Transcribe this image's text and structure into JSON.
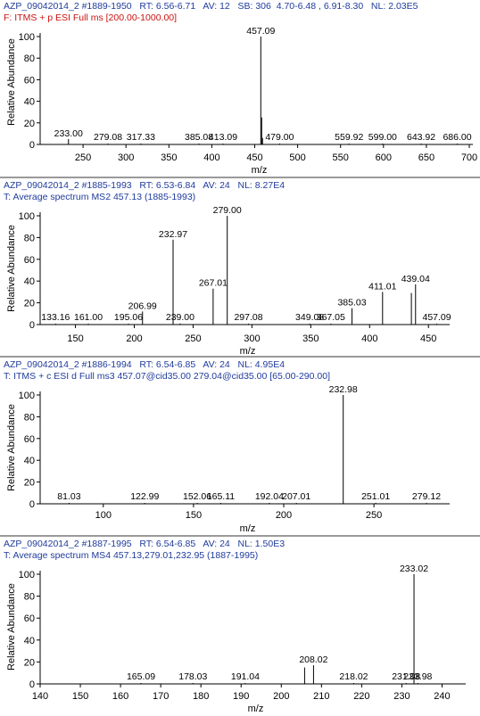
{
  "ui": {
    "ylabel": "Relative Abundance",
    "xlabel": "m/z",
    "colors": {
      "header_text": "#1f3b9c",
      "filter_red": "#cc1111",
      "axis": "#000000",
      "stick": "#000000"
    }
  },
  "panels": [
    {
      "line1": "AZP_09042014_2 #1889-1950   RT: 6.56-6.71   AV: 12   SB: 306  4.70-6.48 , 6.91-8.30   NL: 2.03E5",
      "line2": "F: ITMS + p ESI Full ms [200.00-1000.00]",
      "line2_red": true
    },
    {
      "line1": "AZP_09042014_2 #1885-1993   RT: 6.53-6.84   AV: 24   NL: 8.27E4",
      "line2": "T: Average spectrum MS2 457.13 (1885-1993)",
      "line2_red": false
    },
    {
      "line1": "AZP_09042014_2 #1886-1994   RT: 6.54-6.85   AV: 24   NL: 4.95E4",
      "line2": "T: ITMS + c ESI d Full ms3 457.07@cid35.00 279.04@cid35.00 [65.00-290.00]",
      "line2_red": false
    },
    {
      "line1": "AZP_09042014_2 #1887-1995   RT: 6.54-6.85   AV: 24   NL: 1.50E3",
      "line2": "T: Average spectrum MS4 457.13,279.01,232.95 (1887-1995)",
      "line2_red": false
    }
  ],
  "chart_data": [
    {
      "type": "bar",
      "xlabel": "m/z",
      "ylabel": "Relative Abundance",
      "xlim": [
        200,
        700
      ],
      "ylim": [
        0,
        100
      ],
      "xticks": [
        250,
        300,
        350,
        400,
        450,
        500,
        550,
        600,
        650,
        700
      ],
      "yticks": [
        0,
        20,
        40,
        60,
        80,
        100
      ],
      "peaks": [
        {
          "mz": 233.0,
          "intensity": 5,
          "label": "233.00"
        },
        {
          "mz": 279.08,
          "intensity": 0.5,
          "label": "279.08"
        },
        {
          "mz": 317.33,
          "intensity": 0.5,
          "label": "317.33"
        },
        {
          "mz": 385.08,
          "intensity": 0.5,
          "label": "385.08"
        },
        {
          "mz": 413.09,
          "intensity": 0.5,
          "label": "413.09"
        },
        {
          "mz": 457.09,
          "intensity": 100,
          "label": "457.09"
        },
        {
          "mz": 458.1,
          "intensity": 25,
          "label": ""
        },
        {
          "mz": 459.1,
          "intensity": 6,
          "label": ""
        },
        {
          "mz": 479.0,
          "intensity": 0.5,
          "label": "479.00"
        },
        {
          "mz": 559.92,
          "intensity": 0.5,
          "label": "559.92"
        },
        {
          "mz": 599.0,
          "intensity": 0.5,
          "label": "599.00"
        },
        {
          "mz": 643.92,
          "intensity": 0.5,
          "label": "643.92"
        },
        {
          "mz": 686.0,
          "intensity": 0.5,
          "label": "686.00"
        }
      ]
    },
    {
      "type": "bar",
      "xlabel": "m/z",
      "ylabel": "Relative Abundance",
      "xlim": [
        120,
        465
      ],
      "ylim": [
        0,
        100
      ],
      "xticks": [
        150,
        200,
        250,
        300,
        350,
        400,
        450
      ],
      "yticks": [
        0,
        20,
        40,
        60,
        80,
        100
      ],
      "peaks": [
        {
          "mz": 133.16,
          "intensity": 0.5,
          "label": "133.16"
        },
        {
          "mz": 161.0,
          "intensity": 0.5,
          "label": "161.00"
        },
        {
          "mz": 195.06,
          "intensity": 0.5,
          "label": "195.06"
        },
        {
          "mz": 206.99,
          "intensity": 12,
          "label": "206.99"
        },
        {
          "mz": 232.97,
          "intensity": 78,
          "label": "232.97"
        },
        {
          "mz": 239.0,
          "intensity": 1,
          "label": "239.00"
        },
        {
          "mz": 267.01,
          "intensity": 33,
          "label": "267.01"
        },
        {
          "mz": 279.0,
          "intensity": 100,
          "label": "279.00"
        },
        {
          "mz": 297.08,
          "intensity": 0.5,
          "label": "297.08"
        },
        {
          "mz": 349.08,
          "intensity": 0.5,
          "label": "349.08"
        },
        {
          "mz": 367.05,
          "intensity": 0.5,
          "label": "367.05"
        },
        {
          "mz": 385.03,
          "intensity": 15,
          "label": "385.03"
        },
        {
          "mz": 411.01,
          "intensity": 30,
          "label": "411.01"
        },
        {
          "mz": 439.04,
          "intensity": 37,
          "label": "439.04"
        },
        {
          "mz": 435.5,
          "intensity": 29,
          "label": ""
        },
        {
          "mz": 457.09,
          "intensity": 0.5,
          "label": "457.09"
        }
      ]
    },
    {
      "type": "bar",
      "xlabel": "m/z",
      "ylabel": "Relative Abundance",
      "xlim": [
        65,
        290
      ],
      "ylim": [
        0,
        100
      ],
      "xticks": [
        100,
        150,
        200,
        250
      ],
      "yticks": [
        0,
        20,
        40,
        60,
        80,
        100
      ],
      "peaks": [
        {
          "mz": 81.03,
          "intensity": 0.5,
          "label": "81.03"
        },
        {
          "mz": 122.99,
          "intensity": 0.5,
          "label": "122.99"
        },
        {
          "mz": 152.06,
          "intensity": 0.5,
          "label": "152.06"
        },
        {
          "mz": 165.11,
          "intensity": 0.5,
          "label": "165.11"
        },
        {
          "mz": 192.04,
          "intensity": 0.5,
          "label": "192.04"
        },
        {
          "mz": 207.01,
          "intensity": 0.8,
          "label": "207.01"
        },
        {
          "mz": 232.98,
          "intensity": 100,
          "label": "232.98"
        },
        {
          "mz": 251.01,
          "intensity": 0.5,
          "label": "251.01"
        },
        {
          "mz": 279.12,
          "intensity": 0.5,
          "label": "279.12"
        }
      ]
    },
    {
      "type": "bar",
      "xlabel": "m/z",
      "ylabel": "Relative Abundance",
      "xlim": [
        140,
        245
      ],
      "ylim": [
        0,
        100
      ],
      "xticks": [
        140,
        150,
        160,
        170,
        180,
        190,
        200,
        210,
        220,
        230,
        240
      ],
      "yticks": [
        0,
        20,
        40,
        60,
        80,
        100
      ],
      "peaks": [
        {
          "mz": 165.09,
          "intensity": 0.5,
          "label": "165.09"
        },
        {
          "mz": 178.03,
          "intensity": 0.5,
          "label": "178.03"
        },
        {
          "mz": 191.04,
          "intensity": 0.5,
          "label": "191.04"
        },
        {
          "mz": 205.8,
          "intensity": 15,
          "label": ""
        },
        {
          "mz": 208.02,
          "intensity": 17,
          "label": "208.02"
        },
        {
          "mz": 218.02,
          "intensity": 0.5,
          "label": "218.02"
        },
        {
          "mz": 231.08,
          "intensity": 0.5,
          "label": "231.08"
        },
        {
          "mz": 233.02,
          "intensity": 100,
          "label": "233.02"
        },
        {
          "mz": 233.98,
          "intensity": 0.5,
          "label": "233.98"
        }
      ]
    }
  ]
}
